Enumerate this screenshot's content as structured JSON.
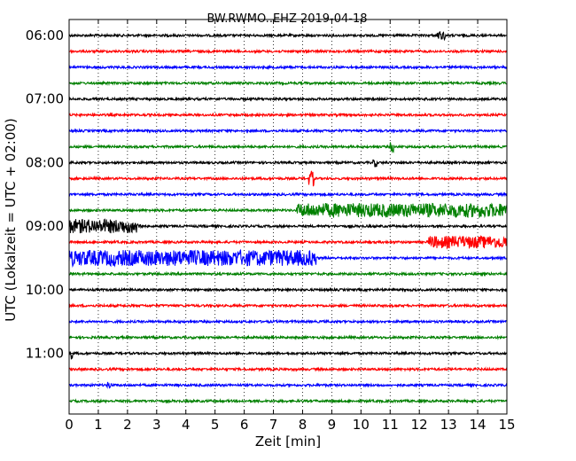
{
  "chart_data": {
    "type": "line",
    "title": "BW.RWMO..EHZ 2019-04-18",
    "xlabel": "Zeit  [min]",
    "ylabel": "UTC (Lokalzeit = UTC + 02:00)",
    "xlim": [
      0,
      15
    ],
    "x_ticks": [
      "0",
      "1",
      "2",
      "3",
      "4",
      "5",
      "6",
      "7",
      "8",
      "9",
      "10",
      "11",
      "12",
      "13",
      "14",
      "15"
    ],
    "y_tick_labels": [
      "06:00",
      "07:00",
      "08:00",
      "09:00",
      "10:00",
      "11:00"
    ],
    "grid": "vertical dotted at each minute",
    "trace_colors": [
      "#000000",
      "#ff0000",
      "#0000ff",
      "#008000"
    ],
    "series": [
      {
        "start": "06:00",
        "color": "black",
        "bursts": [
          {
            "from": 12.6,
            "to": 12.9,
            "amp": 5
          }
        ]
      },
      {
        "start": "06:15",
        "color": "red",
        "bursts": []
      },
      {
        "start": "06:30",
        "color": "blue",
        "bursts": []
      },
      {
        "start": "06:45",
        "color": "green",
        "bursts": []
      },
      {
        "start": "07:00",
        "color": "black",
        "bursts": []
      },
      {
        "start": "07:15",
        "color": "red",
        "bursts": []
      },
      {
        "start": "07:30",
        "color": "blue",
        "bursts": []
      },
      {
        "start": "07:45",
        "color": "green",
        "bursts": [
          {
            "from": 11.0,
            "to": 11.15,
            "amp": 6
          }
        ]
      },
      {
        "start": "08:00",
        "color": "black",
        "bursts": [
          {
            "from": 10.4,
            "to": 10.55,
            "amp": 5
          }
        ]
      },
      {
        "start": "08:15",
        "color": "red",
        "bursts": [
          {
            "from": 8.2,
            "to": 8.4,
            "amp": 9
          }
        ]
      },
      {
        "start": "08:30",
        "color": "blue",
        "bursts": []
      },
      {
        "start": "08:45",
        "color": "green",
        "bursts": [
          {
            "from": 7.8,
            "to": 15.0,
            "amp": 8
          }
        ]
      },
      {
        "start": "09:00",
        "color": "black",
        "bursts": [
          {
            "from": 0.0,
            "to": 2.5,
            "amp": 8
          }
        ]
      },
      {
        "start": "09:15",
        "color": "red",
        "bursts": [
          {
            "from": 12.3,
            "to": 15.0,
            "amp": 7
          }
        ]
      },
      {
        "start": "09:30",
        "color": "blue",
        "bursts": [
          {
            "from": 0.0,
            "to": 8.5,
            "amp": 9
          }
        ]
      },
      {
        "start": "09:45",
        "color": "green",
        "bursts": []
      },
      {
        "start": "10:00",
        "color": "black",
        "bursts": []
      },
      {
        "start": "10:15",
        "color": "red",
        "bursts": []
      },
      {
        "start": "10:30",
        "color": "blue",
        "bursts": []
      },
      {
        "start": "10:45",
        "color": "green",
        "bursts": []
      },
      {
        "start": "11:00",
        "color": "black",
        "bursts": [
          {
            "from": 0.05,
            "to": 0.15,
            "amp": 7
          }
        ]
      },
      {
        "start": "11:15",
        "color": "red",
        "bursts": []
      },
      {
        "start": "11:30",
        "color": "blue",
        "bursts": [
          {
            "from": 1.3,
            "to": 1.45,
            "amp": 4
          }
        ]
      },
      {
        "start": "11:45",
        "color": "green",
        "bursts": []
      }
    ]
  }
}
